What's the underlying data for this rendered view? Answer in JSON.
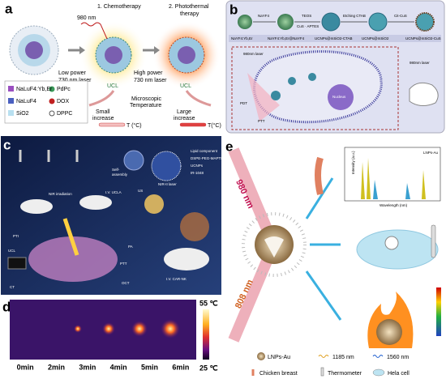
{
  "panels": {
    "a": {
      "label": "a",
      "laser": "980 nm",
      "step1": "1. Chemotherapy",
      "step2": [
        "2. Photothermal",
        "therapy"
      ],
      "low": [
        "Low power",
        "730 nm laser"
      ],
      "high": [
        "High power",
        "730 nm laser"
      ],
      "ucl": [
        "UCL",
        "UCL"
      ],
      "micro": [
        "Microscopic",
        "Temperature"
      ],
      "small": [
        "Small",
        "increase"
      ],
      "large": [
        "Large",
        "increase"
      ],
      "temp": [
        "T (°C)",
        "T(°C)"
      ],
      "legend": [
        "NaLuF4:Yb,Er",
        "NaLuF4",
        "SiO2",
        "PdPc",
        "DOX",
        "DPPC"
      ]
    },
    "b": {
      "label": "b",
      "steps": [
        "NaYF4",
        "TEOS",
        "Etching CTAB",
        "Cit-CuS"
      ],
      "reagent": "CuS · APTES",
      "products": [
        "NaYF4:Yb,Er",
        "NaYF4:Yb,Er@NaYF4",
        "UCNPs@mSiO2-CTAB",
        "UCNPs@mSiO2",
        "UCNPs@mSiO2-CuS"
      ],
      "laser": [
        "980nm laser",
        "980nm laser"
      ],
      "nucleus": "Nucleus",
      "pdt": "PDT",
      "ptt": "PTT"
    },
    "c": {
      "label": "c",
      "assembly": [
        "Self-",
        "assembly"
      ],
      "nir2": "NIR-II laser",
      "nir": "NIR irradiation",
      "ucla": "I.V. UCLA",
      "us": "US",
      "pti": "PTI",
      "pa": "PA",
      "ptt": "PTT",
      "carnk": "I.V. CAR-NK",
      "ucl": "UCL",
      "oct": "OCT",
      "ct": "CT",
      "legend": [
        "Lipid component",
        "DSPE-PEG-MAPTI",
        "UCNPs",
        "IR-1048"
      ]
    },
    "d": {
      "label": "d",
      "times": [
        "0min",
        "2min",
        "3min",
        "4min",
        "5min",
        "6min"
      ],
      "max": "55 ℃",
      "min": "25 ℃"
    },
    "e": {
      "label": "e",
      "l980": "980 nm",
      "l808": "808 nm",
      "inset_title": "LNPs-Au",
      "ylabel": "Intensity (a.u.)",
      "xlabel": "Wavelength (nm)",
      "legend": [
        "LNPs-Au",
        "1185 nm",
        "1560 nm",
        "Chicken breast",
        "Thermometer",
        "Hela cell"
      ]
    }
  }
}
